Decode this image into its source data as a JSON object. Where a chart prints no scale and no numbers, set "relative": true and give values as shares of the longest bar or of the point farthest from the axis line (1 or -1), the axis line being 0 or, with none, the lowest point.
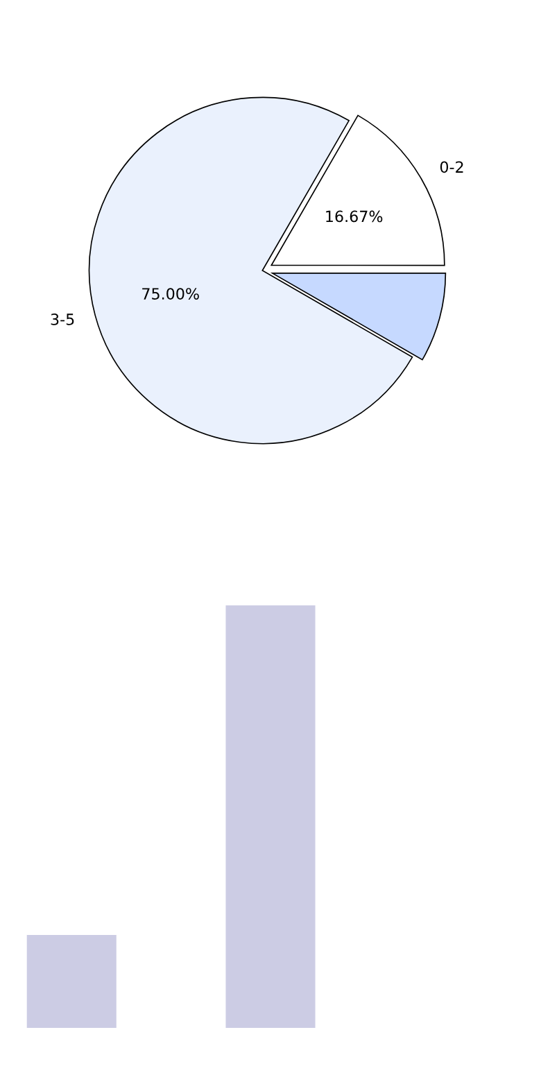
{
  "chart_data": [
    {
      "type": "pie",
      "categories": [
        "0-2",
        null,
        "3-5"
      ],
      "values": [
        16.67,
        8.33,
        75.0
      ],
      "colors": [
        "#ffffff",
        "#c6d9ff",
        "#eaf1fd"
      ],
      "value_labels": [
        "16.67%",
        null,
        "75.00%"
      ]
    },
    {
      "type": "bar",
      "relative": true,
      "categories": [
        null,
        null
      ],
      "values": [
        0.22,
        1
      ],
      "color": "#cccce4"
    }
  ]
}
